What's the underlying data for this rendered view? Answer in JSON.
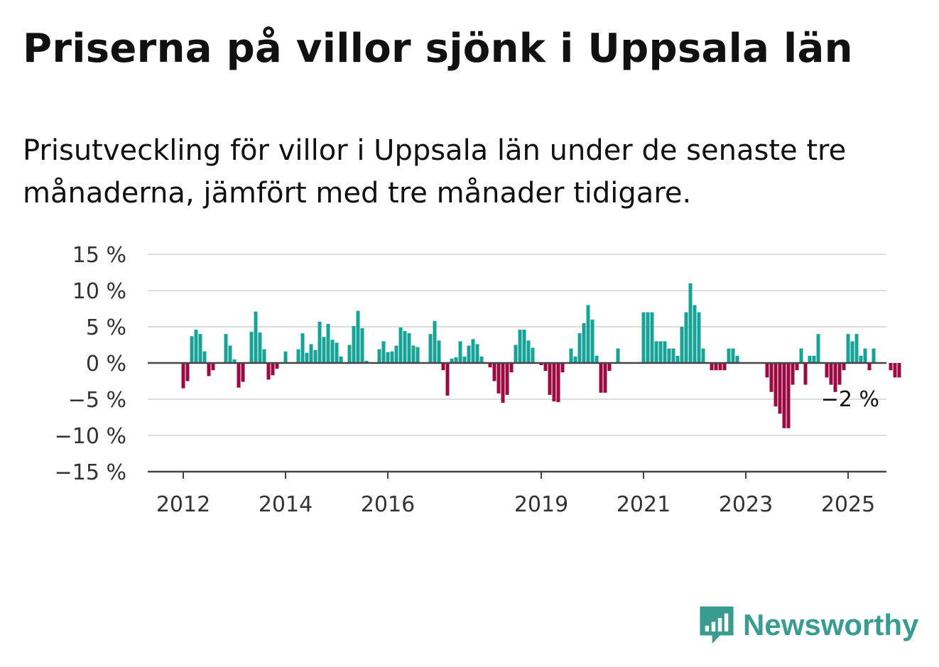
{
  "title": "Priserna på villor sjönk i Uppsala län",
  "subtitle": "Prisutveckling för villor i Uppsala län under de senaste tre månaderna, jämfört med tre månader tidigare.",
  "brand": {
    "name": "Newsworthy",
    "icon": "newsworthy-bar-chart-logo"
  },
  "colors": {
    "positive": "#18a398",
    "negative": "#9b0a43",
    "grid": "#dddddd",
    "axis": "#444444"
  },
  "chart_data": {
    "type": "bar",
    "title": "Priserna på villor sjönk i Uppsala län",
    "subtitle": "Prisutveckling för villor i Uppsala län under de senaste tre månaderna, jämfört med tre månader tidigare.",
    "unit": "%",
    "ylim": [
      -15,
      15
    ],
    "y_ticks": [
      15,
      10,
      5,
      0,
      -5,
      -10,
      -15
    ],
    "y_tick_labels": [
      "15 %",
      "10 %",
      "5 %",
      "0 %",
      "−5 %",
      "−10 %",
      "−15 %"
    ],
    "x_tick_labels": [
      "2012",
      "2014",
      "2016",
      "2019",
      "2021",
      "2023",
      "2025"
    ],
    "grid": true,
    "start": "2012-01",
    "frequency": "monthly",
    "last_value_label": "−2 %",
    "values": [
      -3.5,
      -2.5,
      3.7,
      4.6,
      4.0,
      1.6,
      -1.8,
      -1.0,
      0.0,
      0.0,
      4.0,
      2.4,
      0.5,
      -3.4,
      -2.6,
      0.0,
      4.3,
      7.1,
      4.2,
      1.9,
      -2.3,
      -1.7,
      -0.8,
      0.0,
      1.6,
      0.0,
      0.0,
      1.9,
      4.1,
      1.4,
      2.6,
      1.8,
      5.7,
      3.6,
      5.4,
      3.2,
      2.8,
      0.9,
      0.0,
      2.5,
      5.1,
      7.2,
      4.8,
      0.3,
      0.0,
      0.0,
      1.9,
      3.0,
      1.5,
      1.6,
      2.4,
      4.9,
      4.4,
      4.1,
      2.4,
      2.2,
      0.0,
      0.0,
      4.0,
      5.8,
      3.1,
      -1.0,
      -4.5,
      0.6,
      0.8,
      3.0,
      0.9,
      2.4,
      3.3,
      2.6,
      0.9,
      0.0,
      -0.6,
      -2.5,
      -4.2,
      -5.5,
      -4.4,
      -1.3,
      2.5,
      4.6,
      4.6,
      3.1,
      2.1,
      0.0,
      -0.3,
      -1.1,
      -4.4,
      -5.3,
      -5.4,
      -1.3,
      0.0,
      2.0,
      0.9,
      4.1,
      5.5,
      8.0,
      6.0,
      1.0,
      -4.1,
      -4.1,
      -1.1,
      0.0,
      2.0,
      0.0,
      0.0,
      0.0,
      0.0,
      0.0,
      7.0,
      7.0,
      7.0,
      3.0,
      3.0,
      3.0,
      2.0,
      2.0,
      1.0,
      5.0,
      7.0,
      11.0,
      8.0,
      7.0,
      2.0,
      0.0,
      -1.0,
      -1.0,
      -1.0,
      -1.0,
      2.0,
      2.0,
      1.0,
      0.0,
      0.0,
      0.0,
      0.0,
      0.0,
      0.0,
      -2.0,
      -4.0,
      -6.0,
      -7.0,
      -9.0,
      -9.0,
      -3.0,
      -1.0,
      2.0,
      -3.0,
      1.0,
      1.0,
      4.0,
      0.0,
      -2.0,
      -3.0,
      -4.0,
      -3.0,
      -1.0,
      4.0,
      3.0,
      4.0,
      1.0,
      2.0,
      -1.0,
      2.0,
      0.0,
      0.0,
      0.0,
      -1.0,
      -2.0,
      -2.0
    ]
  }
}
